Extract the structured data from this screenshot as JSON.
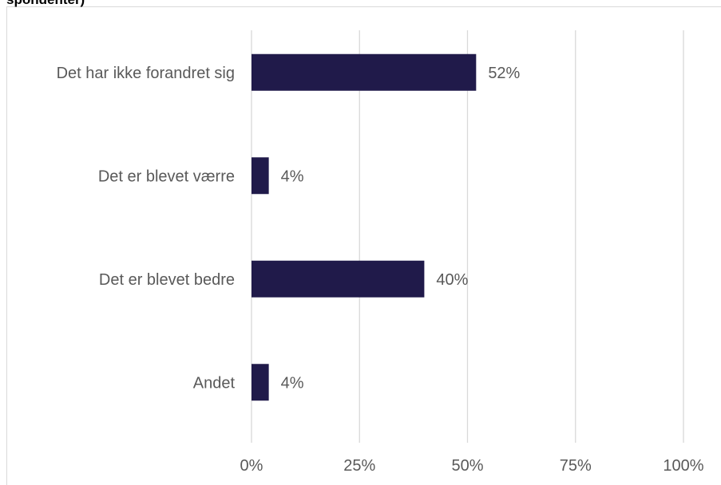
{
  "chart_data": {
    "type": "bar",
    "orientation": "horizontal",
    "title": "spondenter)",
    "categories": [
      "Det har ikke forandret sig",
      "Det er blevet værre",
      "Det er blevet bedre",
      "Andet"
    ],
    "values": [
      52,
      4,
      40,
      4
    ],
    "data_labels": [
      "52%",
      "4%",
      "40%",
      "4%"
    ],
    "xlim": [
      0,
      100
    ],
    "x_ticks": [
      0,
      25,
      50,
      75,
      100
    ],
    "x_tick_labels": [
      "0%",
      "25%",
      "50%",
      "75%",
      "100%"
    ],
    "grid": "vertical",
    "legend": "none",
    "bar_color": "#201a4a",
    "grid_color": "#d9d9d9",
    "text_color": "#595959"
  }
}
